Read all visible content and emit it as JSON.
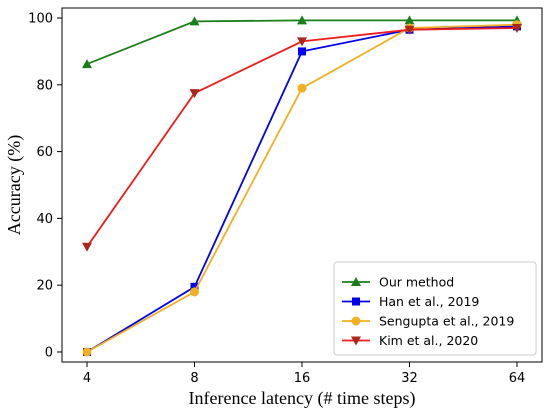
{
  "chart_data": {
    "type": "line",
    "x_scale": "log2",
    "categories": [
      "4",
      "8",
      "16",
      "32",
      "64"
    ],
    "x": [
      4,
      8,
      16,
      32,
      64
    ],
    "xlabel": "Inference latency (# time steps)",
    "ylabel": "Accuracy (%)",
    "ylim": [
      -3,
      103
    ],
    "yticks": [
      0,
      20,
      40,
      60,
      80,
      100
    ],
    "grid": false,
    "legend_position": "bottom-right",
    "series": [
      {
        "name": "Our method",
        "color": "#1a7f1a",
        "marker": "triangle-up",
        "values": [
          86.2,
          99.0,
          99.3,
          99.3,
          99.3
        ]
      },
      {
        "name": "Han et al., 2019",
        "color": "#0000ee",
        "marker": "square",
        "values": [
          0.0,
          19.5,
          90.0,
          96.5,
          97.5
        ]
      },
      {
        "name": "Sengupta et al., 2019",
        "color": "#f0b020",
        "marker": "circle",
        "values": [
          0.0,
          18.0,
          79.0,
          97.0,
          98.0
        ]
      },
      {
        "name": "Kim et al., 2020",
        "color": "#ee1c1c",
        "marker_color": "#a8281a",
        "marker": "triangle-down",
        "values": [
          31.5,
          77.5,
          93.0,
          96.5,
          97.0
        ]
      }
    ]
  }
}
